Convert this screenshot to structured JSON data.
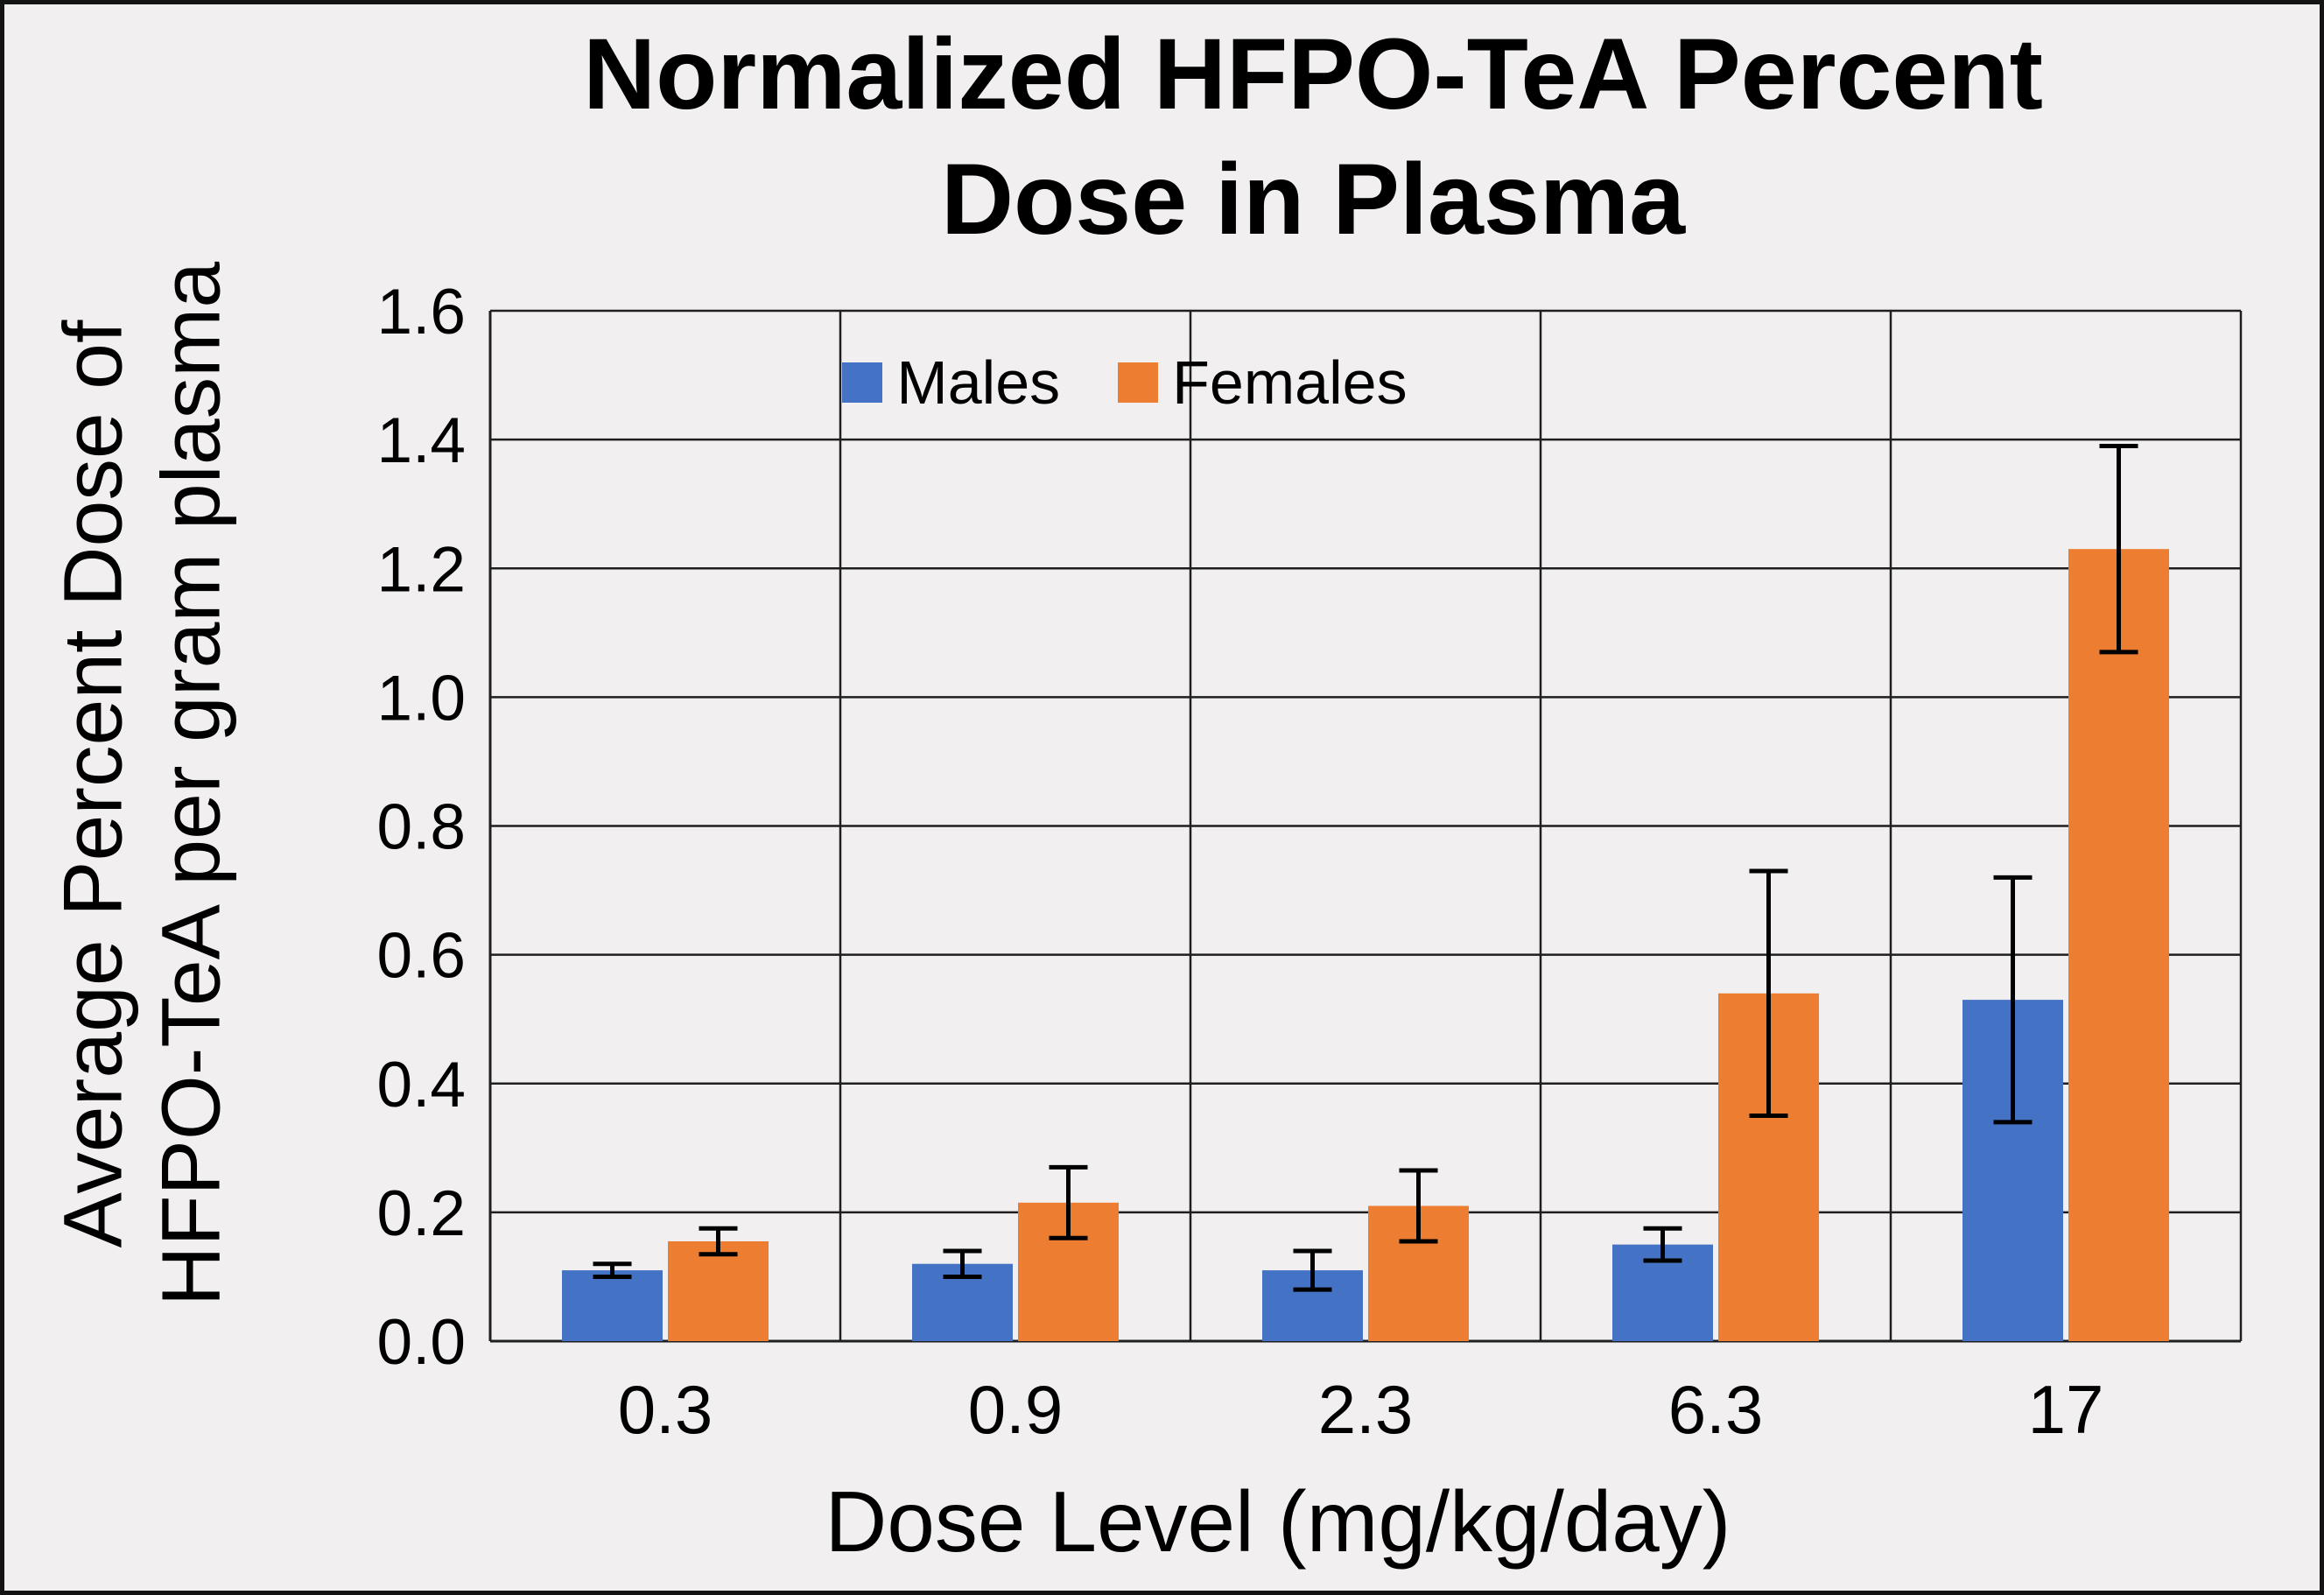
{
  "chart_data": {
    "type": "bar",
    "title": "Normalized HFPO-TeA Percent Dose in Plasma",
    "title_lines": [
      "Normalized HFPO-TeA Percent",
      "Dose in Plasma"
    ],
    "xlabel": "Dose Level (mg/kg/day)",
    "ylabel": "Average Percent Dose of HFPO-TeA per gram plasma",
    "ylabel_lines": [
      "Average Percent Dose of",
      "HFPO-TeA per gram plasma"
    ],
    "categories": [
      "0.3",
      "0.9",
      "2.3",
      "6.3",
      "17"
    ],
    "series": [
      {
        "name": "Males",
        "color": "#4472C4",
        "values": [
          0.11,
          0.12,
          0.11,
          0.15,
          0.53
        ],
        "errors": [
          0.01,
          0.02,
          0.03,
          0.025,
          0.19
        ]
      },
      {
        "name": "Females",
        "color": "#ED7D31",
        "values": [
          0.155,
          0.215,
          0.21,
          0.54,
          1.23
        ],
        "errors": [
          0.02,
          0.055,
          0.055,
          0.19,
          0.16
        ]
      }
    ],
    "ylim": [
      0,
      1.6
    ],
    "ytick_step": 0.2,
    "yticks": [
      "0.0",
      "0.2",
      "0.4",
      "0.6",
      "0.8",
      "1.0",
      "1.2",
      "1.4",
      "1.6"
    ],
    "grid": "horizontal and vertical gridlines on",
    "legend_position": "top-center-inside",
    "error_bars": "symmetric, black with caps",
    "colors": {
      "background": "#F1EFEF",
      "gridline": "#1f1f1f",
      "text": "#000000"
    }
  }
}
